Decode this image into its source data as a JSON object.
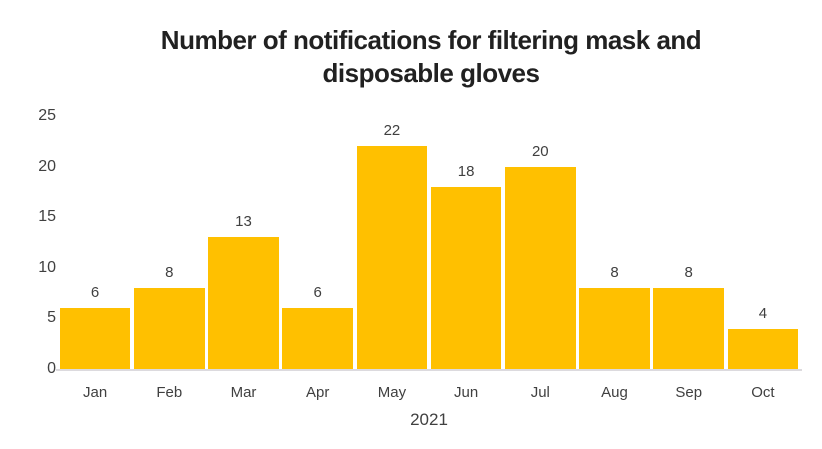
{
  "chart_data": {
    "type": "bar",
    "title": "Number of notifications for filtering mask and disposable gloves",
    "categories": [
      "Jan",
      "Feb",
      "Mar",
      "Apr",
      "May",
      "Jun",
      "Jul",
      "Aug",
      "Sep",
      "Oct"
    ],
    "values": [
      6,
      8,
      13,
      6,
      22,
      18,
      20,
      8,
      8,
      4
    ],
    "xlabel": "2021",
    "ylabel": "",
    "ylim": [
      0,
      25
    ],
    "yticks": [
      0,
      5,
      10,
      15,
      20,
      25
    ],
    "grid": false,
    "legend_position": "none",
    "data_labels_shown": true,
    "colors": {
      "bar": "#FFC000",
      "axis_text": "#404040",
      "title_text": "#212121",
      "baseline": "#dcdade",
      "background": "#ffffff"
    }
  }
}
